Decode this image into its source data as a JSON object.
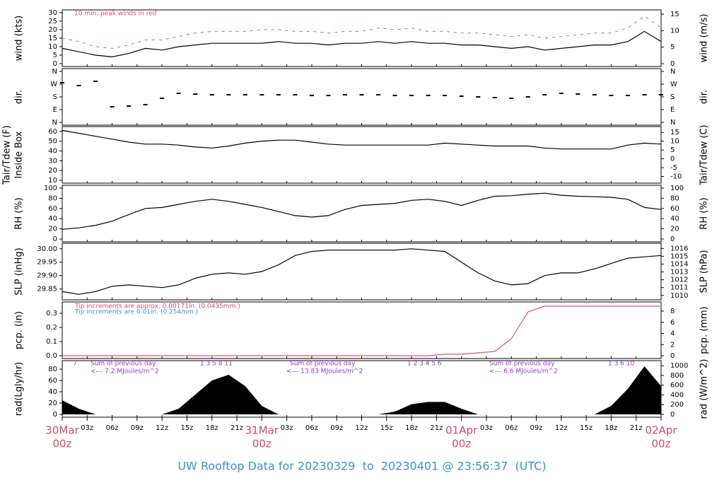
{
  "page": {
    "title": "UW Rooftop Data for 20230329  to  20230401 @ 23:56:37  (UTC)",
    "xlim": [
      0,
      72
    ],
    "xticks": [
      {
        "value": 3,
        "label": "03z"
      },
      {
        "value": 6,
        "label": "06z"
      },
      {
        "value": 9,
        "label": "09z"
      },
      {
        "value": 12,
        "label": "12z"
      },
      {
        "value": 15,
        "label": "15z"
      },
      {
        "value": 18,
        "label": "18z"
      },
      {
        "value": 21,
        "label": "21z"
      },
      {
        "value": 27,
        "label": "03z"
      },
      {
        "value": 30,
        "label": "06z"
      },
      {
        "value": 33,
        "label": "09z"
      },
      {
        "value": 36,
        "label": "12z"
      },
      {
        "value": 39,
        "label": "15z"
      },
      {
        "value": 42,
        "label": "18z"
      },
      {
        "value": 45,
        "label": "21z"
      },
      {
        "value": 51,
        "label": "03z"
      },
      {
        "value": 54,
        "label": "06z"
      },
      {
        "value": 57,
        "label": "09z"
      },
      {
        "value": 60,
        "label": "12z"
      },
      {
        "value": 63,
        "label": "15z"
      },
      {
        "value": 66,
        "label": "18z"
      },
      {
        "value": 69,
        "label": "21z"
      }
    ],
    "date_ticks": [
      {
        "value": 0,
        "label": "30Mar",
        "hour": "00z"
      },
      {
        "value": 24,
        "label": "31Mar",
        "hour": "00z"
      },
      {
        "value": 48,
        "label": "01Apr",
        "hour": "00z"
      },
      {
        "value": 72,
        "label": "02Apr",
        "hour": "00z"
      }
    ]
  },
  "chart_data": [
    {
      "type": "line",
      "y_label": "wind (kts)",
      "y2_label": "wind (m/s)",
      "annotations": [
        "10 min. peak winds in red"
      ],
      "ylim": [
        0,
        30
      ],
      "yticks": [
        0,
        5,
        10,
        15,
        20,
        25,
        30
      ],
      "y2lim": [
        0,
        15.43
      ],
      "y2ticks": [
        0,
        5,
        10,
        15
      ],
      "x": [
        0,
        2,
        4,
        6,
        8,
        10,
        12,
        14,
        16,
        18,
        20,
        22,
        24,
        26,
        28,
        30,
        32,
        34,
        36,
        38,
        40,
        42,
        44,
        46,
        48,
        50,
        52,
        54,
        56,
        58,
        60,
        62,
        64,
        66,
        68,
        70,
        72
      ],
      "series": [
        {
          "name": "wind",
          "color": "#000000",
          "values": [
            9,
            7,
            5,
            4,
            6,
            9,
            8,
            10,
            11,
            12,
            12,
            12,
            12,
            13,
            12,
            12,
            11,
            12,
            12,
            13,
            12,
            13,
            12,
            12,
            11,
            11,
            10,
            9,
            10,
            8,
            9,
            10,
            11,
            11,
            13,
            19,
            13
          ]
        },
        {
          "name": "peak",
          "color": "#e0507a",
          "dashed": true,
          "values": [
            15,
            13,
            10,
            9,
            11,
            14,
            14,
            16,
            18,
            19,
            19,
            19,
            20,
            20,
            19,
            19,
            18,
            19,
            19,
            21,
            20,
            21,
            19,
            19,
            18,
            18,
            17,
            16,
            17,
            15,
            16,
            17,
            18,
            18,
            21,
            28,
            21
          ]
        }
      ]
    },
    {
      "type": "scatter",
      "y_label": "dir.",
      "y2_label": "dir.",
      "ylim": [
        0,
        360
      ],
      "yticks": [
        {
          "value": 0,
          "label": "N"
        },
        {
          "value": 90,
          "label": "E"
        },
        {
          "value": 180,
          "label": "S"
        },
        {
          "value": 270,
          "label": "W"
        },
        {
          "value": 360,
          "label": "N"
        }
      ],
      "y2lim": [
        0,
        360
      ],
      "y2ticks": [
        {
          "value": 0,
          "label": "N"
        },
        {
          "value": 90,
          "label": "E"
        },
        {
          "value": 180,
          "label": "S"
        },
        {
          "value": 270,
          "label": "W"
        },
        {
          "value": 360,
          "label": "N"
        }
      ],
      "x": [
        0,
        2,
        4,
        6,
        8,
        10,
        12,
        14,
        16,
        18,
        20,
        22,
        24,
        26,
        28,
        30,
        32,
        34,
        36,
        38,
        40,
        42,
        44,
        46,
        48,
        50,
        52,
        54,
        56,
        58,
        60,
        62,
        64,
        66,
        68,
        70,
        72
      ],
      "series": [
        {
          "name": "dir",
          "color": "#000000",
          "values": [
            280,
            260,
            290,
            110,
            115,
            125,
            170,
            205,
            200,
            195,
            195,
            195,
            195,
            195,
            195,
            190,
            190,
            195,
            195,
            195,
            190,
            190,
            190,
            190,
            185,
            180,
            175,
            170,
            180,
            195,
            205,
            200,
            195,
            190,
            190,
            195,
            195
          ]
        }
      ]
    },
    {
      "type": "line",
      "y_label": "Tair/Tdew (F)",
      "y_sublabel": "Inside Box",
      "y2_label": "Tair/Tdew (C)",
      "ylim": [
        10,
        62
      ],
      "yticks": [
        10,
        20,
        30,
        40,
        50,
        60
      ],
      "y2lim": [
        -12.2,
        16.7
      ],
      "y2ticks": [
        -10,
        -5,
        0,
        5,
        10,
        15
      ],
      "x": [
        0,
        2,
        4,
        6,
        8,
        10,
        12,
        14,
        16,
        18,
        20,
        22,
        24,
        26,
        28,
        30,
        32,
        34,
        36,
        38,
        40,
        42,
        44,
        46,
        48,
        50,
        52,
        54,
        56,
        58,
        60,
        62,
        64,
        66,
        68,
        70,
        72
      ],
      "series": [
        {
          "name": "temp",
          "color": "#000000",
          "values": [
            61,
            58,
            55,
            52,
            49,
            47,
            47,
            46,
            44,
            43,
            45,
            48,
            50,
            51,
            51,
            49,
            47,
            46,
            46,
            46,
            46,
            46,
            46,
            48,
            47,
            46,
            45,
            45,
            45,
            43,
            42,
            42,
            42,
            42,
            46,
            48,
            47
          ]
        }
      ]
    },
    {
      "type": "line",
      "y_label": "RH (%)",
      "y2_label": "RH (%)",
      "ylim": [
        0,
        100
      ],
      "yticks": [
        0,
        20,
        40,
        60,
        80,
        100
      ],
      "y2lim": [
        0,
        100
      ],
      "y2ticks": [
        0,
        20,
        40,
        60,
        80,
        100
      ],
      "x": [
        0,
        2,
        4,
        6,
        8,
        10,
        12,
        14,
        16,
        18,
        20,
        22,
        24,
        26,
        28,
        30,
        32,
        34,
        36,
        38,
        40,
        42,
        44,
        46,
        48,
        50,
        52,
        54,
        56,
        58,
        60,
        62,
        64,
        66,
        68,
        70,
        72
      ],
      "series": [
        {
          "name": "rh",
          "color": "#000000",
          "values": [
            19,
            22,
            27,
            35,
            48,
            60,
            62,
            68,
            74,
            78,
            74,
            68,
            62,
            54,
            46,
            43,
            46,
            58,
            66,
            68,
            70,
            76,
            78,
            74,
            66,
            76,
            84,
            85,
            88,
            90,
            86,
            84,
            83,
            82,
            78,
            62,
            58
          ]
        }
      ]
    },
    {
      "type": "line",
      "y_label": "SLP (inHg)",
      "y2_label": "SLP (hPa)",
      "ylim": [
        29.82,
        30.01
      ],
      "yticks": [
        29.85,
        {
          "value": 29.9,
          "label": "29.90"
        },
        29.95,
        {
          "value": 30,
          "label": "30.00"
        }
      ],
      "y2lim": [
        1009.8,
        1016.3
      ],
      "y2ticks": [
        1010,
        1011,
        1012,
        1013,
        1014,
        1015,
        1016
      ],
      "x": [
        0,
        2,
        4,
        6,
        8,
        10,
        12,
        14,
        16,
        18,
        20,
        22,
        24,
        26,
        28,
        30,
        32,
        34,
        36,
        38,
        40,
        42,
        44,
        46,
        48,
        50,
        52,
        54,
        56,
        58,
        60,
        62,
        64,
        66,
        68,
        70,
        72
      ],
      "series": [
        {
          "name": "slp",
          "color": "#000000",
          "values": [
            29.84,
            29.83,
            29.84,
            29.86,
            29.865,
            29.86,
            29.855,
            29.865,
            29.89,
            29.905,
            29.91,
            29.905,
            29.915,
            29.94,
            29.975,
            29.99,
            29.995,
            29.995,
            29.995,
            29.995,
            29.995,
            30.0,
            29.995,
            29.99,
            29.95,
            29.91,
            29.88,
            29.865,
            29.87,
            29.9,
            29.91,
            29.91,
            29.925,
            29.945,
            29.965,
            29.97,
            29.975
          ]
        }
      ]
    },
    {
      "type": "line",
      "y_label": "pcp. (in)",
      "y2_label": "pcp. (mm)",
      "annotations": [
        "Tip increments are approx. 0.00171in. (0.0435mm.)",
        "Tip increments are 0.01in. (0.254mm.)"
      ],
      "annotation_colors": [
        "#d04a6a",
        "#3a8fd8"
      ],
      "ylim": [
        0,
        0.36
      ],
      "yticks": [
        {
          "value": 0,
          "label": "0.0"
        },
        0.1,
        0.2,
        0.3
      ],
      "y2lim": [
        0,
        9.144
      ],
      "y2ticks": [
        0,
        2,
        4,
        6,
        8
      ],
      "x": [
        0,
        2,
        4,
        6,
        8,
        10,
        12,
        14,
        16,
        18,
        20,
        22,
        24,
        26,
        28,
        30,
        32,
        34,
        36,
        38,
        40,
        42,
        44,
        46,
        48,
        50,
        52,
        54,
        56,
        58,
        60,
        62,
        64,
        66,
        68,
        70,
        72
      ],
      "series": [
        {
          "name": "pcp",
          "color": "#e0507a",
          "values": [
            0,
            0,
            0,
            0,
            0,
            0,
            0,
            0,
            0,
            0,
            0,
            0,
            0,
            0,
            0,
            0,
            0,
            0,
            0,
            0,
            0,
            0,
            0,
            0.01,
            0.01,
            0.02,
            0.03,
            0.12,
            0.31,
            0.35,
            0.35,
            0.35,
            0.35,
            0.35,
            0.35,
            0.35,
            0.35
          ]
        }
      ]
    },
    {
      "type": "area",
      "y_label": "rad(Lgly/hr)",
      "y2_label": "rad (W/m^2)",
      "annotations": [
        "7",
        "1  3  5  8  11",
        "Sum of previous day",
        "<--- 7.2 MJoules/m^2",
        "Sum of previous day",
        "<--- 13.83 MJoules/m^2",
        "1  2  3  4  5  6",
        "Sum of previous day",
        "<--- 6.6 MJoules/m^2",
        "1  3  6  10"
      ],
      "ylim": [
        0,
        90
      ],
      "yticks": [
        0,
        20,
        40,
        60,
        80
      ],
      "y2lim": [
        0,
        1046.7
      ],
      "y2ticks": [
        0,
        200,
        400,
        600,
        800,
        1000
      ],
      "x": [
        0,
        2,
        4,
        6,
        8,
        10,
        12,
        14,
        16,
        18,
        20,
        22,
        24,
        26,
        28,
        30,
        32,
        34,
        36,
        38,
        40,
        42,
        44,
        46,
        48,
        50,
        52,
        54,
        56,
        58,
        60,
        62,
        64,
        66,
        68,
        70,
        72
      ],
      "series": [
        {
          "name": "rad",
          "color": "#000000",
          "values": [
            25,
            10,
            0,
            0,
            0,
            0,
            0,
            10,
            35,
            60,
            70,
            50,
            15,
            0,
            0,
            0,
            0,
            0,
            0,
            0,
            5,
            18,
            22,
            22,
            10,
            0,
            0,
            0,
            0,
            0,
            0,
            0,
            0,
            15,
            45,
            85,
            50
          ]
        }
      ]
    }
  ]
}
